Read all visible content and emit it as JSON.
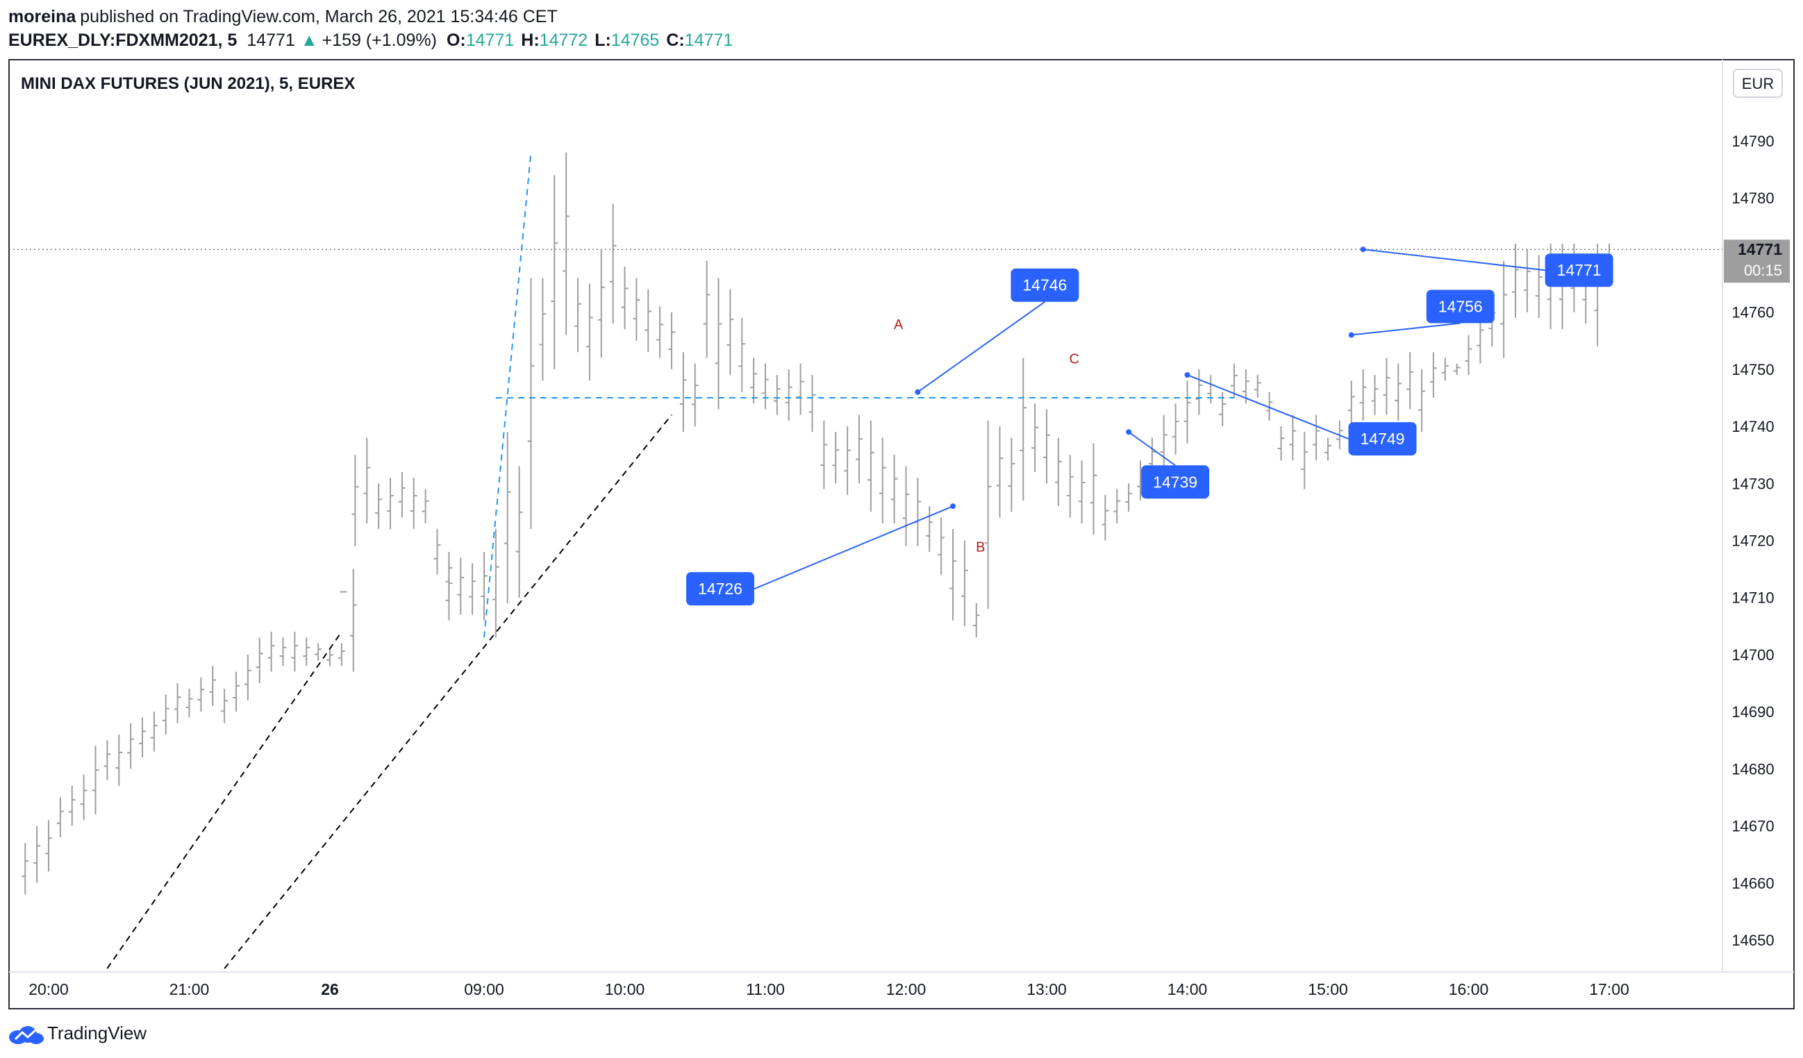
{
  "header": {
    "author": "moreina",
    "published_text": "published on TradingView.com, March 26, 2021 15:34:46 CET",
    "symbol": "EUREX_DLY:FDXMM2021, 5",
    "last": "14771",
    "change": "+159 (+1.09%)",
    "o_label": "O:",
    "o_value": "14771",
    "h_label": "H:",
    "h_value": "14772",
    "l_label": "L:",
    "l_value": "14765",
    "c_label": "C:",
    "c_value": "14771"
  },
  "chart_title": "MINI DAX FUTURES (JUN 2021), 5, EUREX",
  "currency_button": "EUR",
  "price_tag": {
    "value": "14771",
    "countdown": "00:15"
  },
  "footer": {
    "brand": "TradingView"
  },
  "colors": {
    "bar": "#9e9e9e",
    "up": "#26a69a",
    "label_bg": "#2962ff",
    "dashed_blue": "#2196f3",
    "dashed_black": "#000000",
    "wave_letter": "#b71c1c",
    "price_tag_bg": "#9e9e9e"
  },
  "chart_data": {
    "type": "ohlc",
    "y_ticks": [
      14650,
      14660,
      14670,
      14680,
      14690,
      14700,
      14710,
      14720,
      14730,
      14740,
      14750,
      14760,
      14770,
      14780,
      14790
    ],
    "x_ticks": [
      "20:00",
      "21:00",
      "26",
      "09:00",
      "10:00",
      "11:00",
      "12:00",
      "13:00",
      "14:00",
      "15:00",
      "16:00",
      "17:00"
    ],
    "ylim": [
      14645,
      14800
    ],
    "bars_segments": [
      {
        "start": "19:50",
        "end": "22:05",
        "step_min": 5,
        "hl": [
          [
            14667,
            14658
          ],
          [
            14670,
            14660
          ],
          [
            14671,
            14662
          ],
          [
            14675,
            14668
          ],
          [
            14677,
            14670
          ],
          [
            14679,
            14671
          ],
          [
            14684,
            14672
          ],
          [
            14685,
            14678
          ],
          [
            14686,
            14677
          ],
          [
            14688,
            14680
          ],
          [
            14689,
            14682
          ],
          [
            14690,
            14683
          ],
          [
            14693,
            14686
          ],
          [
            14695,
            14688
          ],
          [
            14694,
            14689
          ],
          [
            14696,
            14690
          ],
          [
            14698,
            14691
          ],
          [
            14694,
            14688
          ],
          [
            14697,
            14690
          ],
          [
            14700,
            14692
          ],
          [
            14703,
            14695
          ],
          [
            14704,
            14697
          ],
          [
            14703,
            14698
          ],
          [
            14704,
            14697
          ],
          [
            14703,
            14698
          ],
          [
            14702,
            14699
          ],
          [
            14701,
            14698
          ],
          [
            14702,
            14698
          ]
        ]
      },
      {
        "start": "22:10",
        "end": "22:10",
        "step_min": 5,
        "hl": [
          [
            14715,
            14697
          ]
        ]
      },
      {
        "start": "08:00",
        "end": "08:50",
        "step_min": 5,
        "hl": [
          [
            14711,
            14711
          ],
          [
            14735,
            14719
          ],
          [
            14738,
            14723
          ],
          [
            14730,
            14722
          ],
          [
            14731,
            14722
          ],
          [
            14732,
            14724
          ],
          [
            14731,
            14722
          ],
          [
            14729,
            14723
          ],
          [
            14722,
            14714
          ],
          [
            14718,
            14710
          ]
        ]
      },
      {
        "start": "08:45",
        "end": "17:00",
        "step_min": 5,
        "partial_until": "15:15",
        "hl": [
          [
            14716,
            14706
          ],
          [
            14717,
            14707
          ],
          [
            14716,
            14707
          ],
          [
            14718,
            14706
          ],
          [
            14722,
            14703
          ],
          [
            14739,
            14709
          ],
          [
            14733,
            14710
          ],
          [
            14766,
            14722
          ],
          [
            14766,
            14748
          ],
          [
            14784,
            14750
          ],
          [
            14788,
            14756
          ],
          [
            14766,
            14753
          ],
          [
            14765,
            14748
          ],
          [
            14771,
            14752
          ],
          [
            14779,
            14758
          ],
          [
            14768,
            14757
          ],
          [
            14766,
            14755
          ],
          [
            14764,
            14753
          ],
          [
            14761,
            14752
          ],
          [
            14760,
            14750
          ],
          [
            14753,
            14739
          ],
          [
            14751,
            14740
          ],
          [
            14769,
            14752
          ],
          [
            14766,
            14743
          ],
          [
            14764,
            14749
          ],
          [
            14759,
            14746
          ],
          [
            14752,
            14744
          ],
          [
            14751,
            14743
          ],
          [
            14749,
            14742
          ],
          [
            14750,
            14741
          ],
          [
            14751,
            14742
          ],
          [
            14749,
            14739
          ],
          [
            14741,
            14729
          ],
          [
            14739,
            14730
          ],
          [
            14740,
            14728
          ],
          [
            14742,
            14730
          ],
          [
            14741,
            14725
          ],
          [
            14738,
            14723
          ],
          [
            14735,
            14723
          ],
          [
            14733,
            14719
          ],
          [
            14731,
            14719
          ],
          [
            14726,
            14718
          ],
          [
            14724,
            14714
          ],
          [
            14722,
            14706
          ],
          [
            14720,
            14705
          ],
          [
            14709,
            14703
          ],
          [
            14741,
            14708
          ],
          [
            14740,
            14724
          ],
          [
            14738,
            14725
          ],
          [
            14752,
            14727
          ],
          [
            14744,
            14732
          ],
          [
            14743,
            14730
          ],
          [
            14738,
            14726
          ],
          [
            14735,
            14724
          ],
          [
            14734,
            14723
          ],
          [
            14737,
            14721
          ],
          [
            14728,
            14720
          ],
          [
            14729,
            14723
          ],
          [
            14730,
            14725
          ],
          [
            14734,
            14727
          ],
          [
            14738,
            14731
          ],
          [
            14742,
            14732
          ],
          [
            14744,
            14735
          ],
          [
            14748,
            14737
          ],
          [
            14750,
            14742
          ],
          [
            14749,
            14744
          ],
          [
            14746,
            14740
          ],
          [
            14751,
            14745
          ],
          [
            14750,
            14744
          ],
          [
            14749,
            14745
          ],
          [
            14746,
            14741
          ],
          [
            14740,
            14734
          ],
          [
            14742,
            14734
          ],
          [
            14739,
            14729
          ],
          [
            14742,
            14734
          ],
          [
            14738,
            14734
          ],
          [
            14741,
            14736
          ],
          [
            14748,
            14740
          ],
          [
            14750,
            14741
          ],
          [
            14749,
            14742
          ],
          [
            14752,
            14742
          ],
          [
            14751,
            14741
          ],
          [
            14753,
            14743
          ],
          [
            14750,
            14739
          ],
          [
            14753,
            14745
          ],
          [
            14752,
            14748
          ],
          [
            14751,
            14749
          ],
          [
            14756,
            14749
          ],
          [
            14760,
            14751
          ],
          [
            14763,
            14754
          ],
          [
            14769,
            14752
          ],
          [
            14772,
            14759
          ],
          [
            14771,
            14760
          ],
          [
            14770,
            14759
          ],
          [
            14772,
            14757
          ],
          [
            14772,
            14757
          ],
          [
            14772,
            14760
          ],
          [
            14770,
            14758
          ],
          [
            14772,
            14754
          ],
          [
            14772,
            14765
          ]
        ]
      }
    ],
    "horizontal_line": {
      "value": 14745,
      "from": "09:05",
      "to": "14:20",
      "style": "dashed"
    },
    "last_price_line": 14771,
    "trendlines": [
      {
        "from": [
          "20:25",
          14645
        ],
        "to": [
          "22:05",
          14704
        ],
        "style": "dashed"
      },
      {
        "from": [
          "21:15",
          14645
        ],
        "to": [
          "10:20",
          14742
        ],
        "style": "dashed"
      },
      {
        "from": [
          "09:00",
          14703
        ],
        "to": [
          "09:20",
          14788
        ],
        "style": "dashed"
      }
    ],
    "price_labels": [
      {
        "text": "14746",
        "anchor": [
          "12:05",
          14746
        ]
      },
      {
        "text": "14726",
        "anchor": [
          "12:20",
          14726
        ]
      },
      {
        "text": "14739",
        "anchor": [
          "13:35",
          14739
        ]
      },
      {
        "text": "14749",
        "anchor": [
          "14:00",
          14749
        ]
      },
      {
        "text": "14756",
        "anchor": [
          "15:10",
          14756
        ]
      },
      {
        "text": "14771",
        "anchor": [
          "15:15",
          14771
        ]
      }
    ],
    "wave_labels": [
      {
        "text": "A",
        "at": [
          "11:55",
          14758
        ]
      },
      {
        "text": "B",
        "at": [
          "12:30",
          14719
        ]
      },
      {
        "text": "C",
        "at": [
          "13:10",
          14752
        ]
      }
    ]
  }
}
